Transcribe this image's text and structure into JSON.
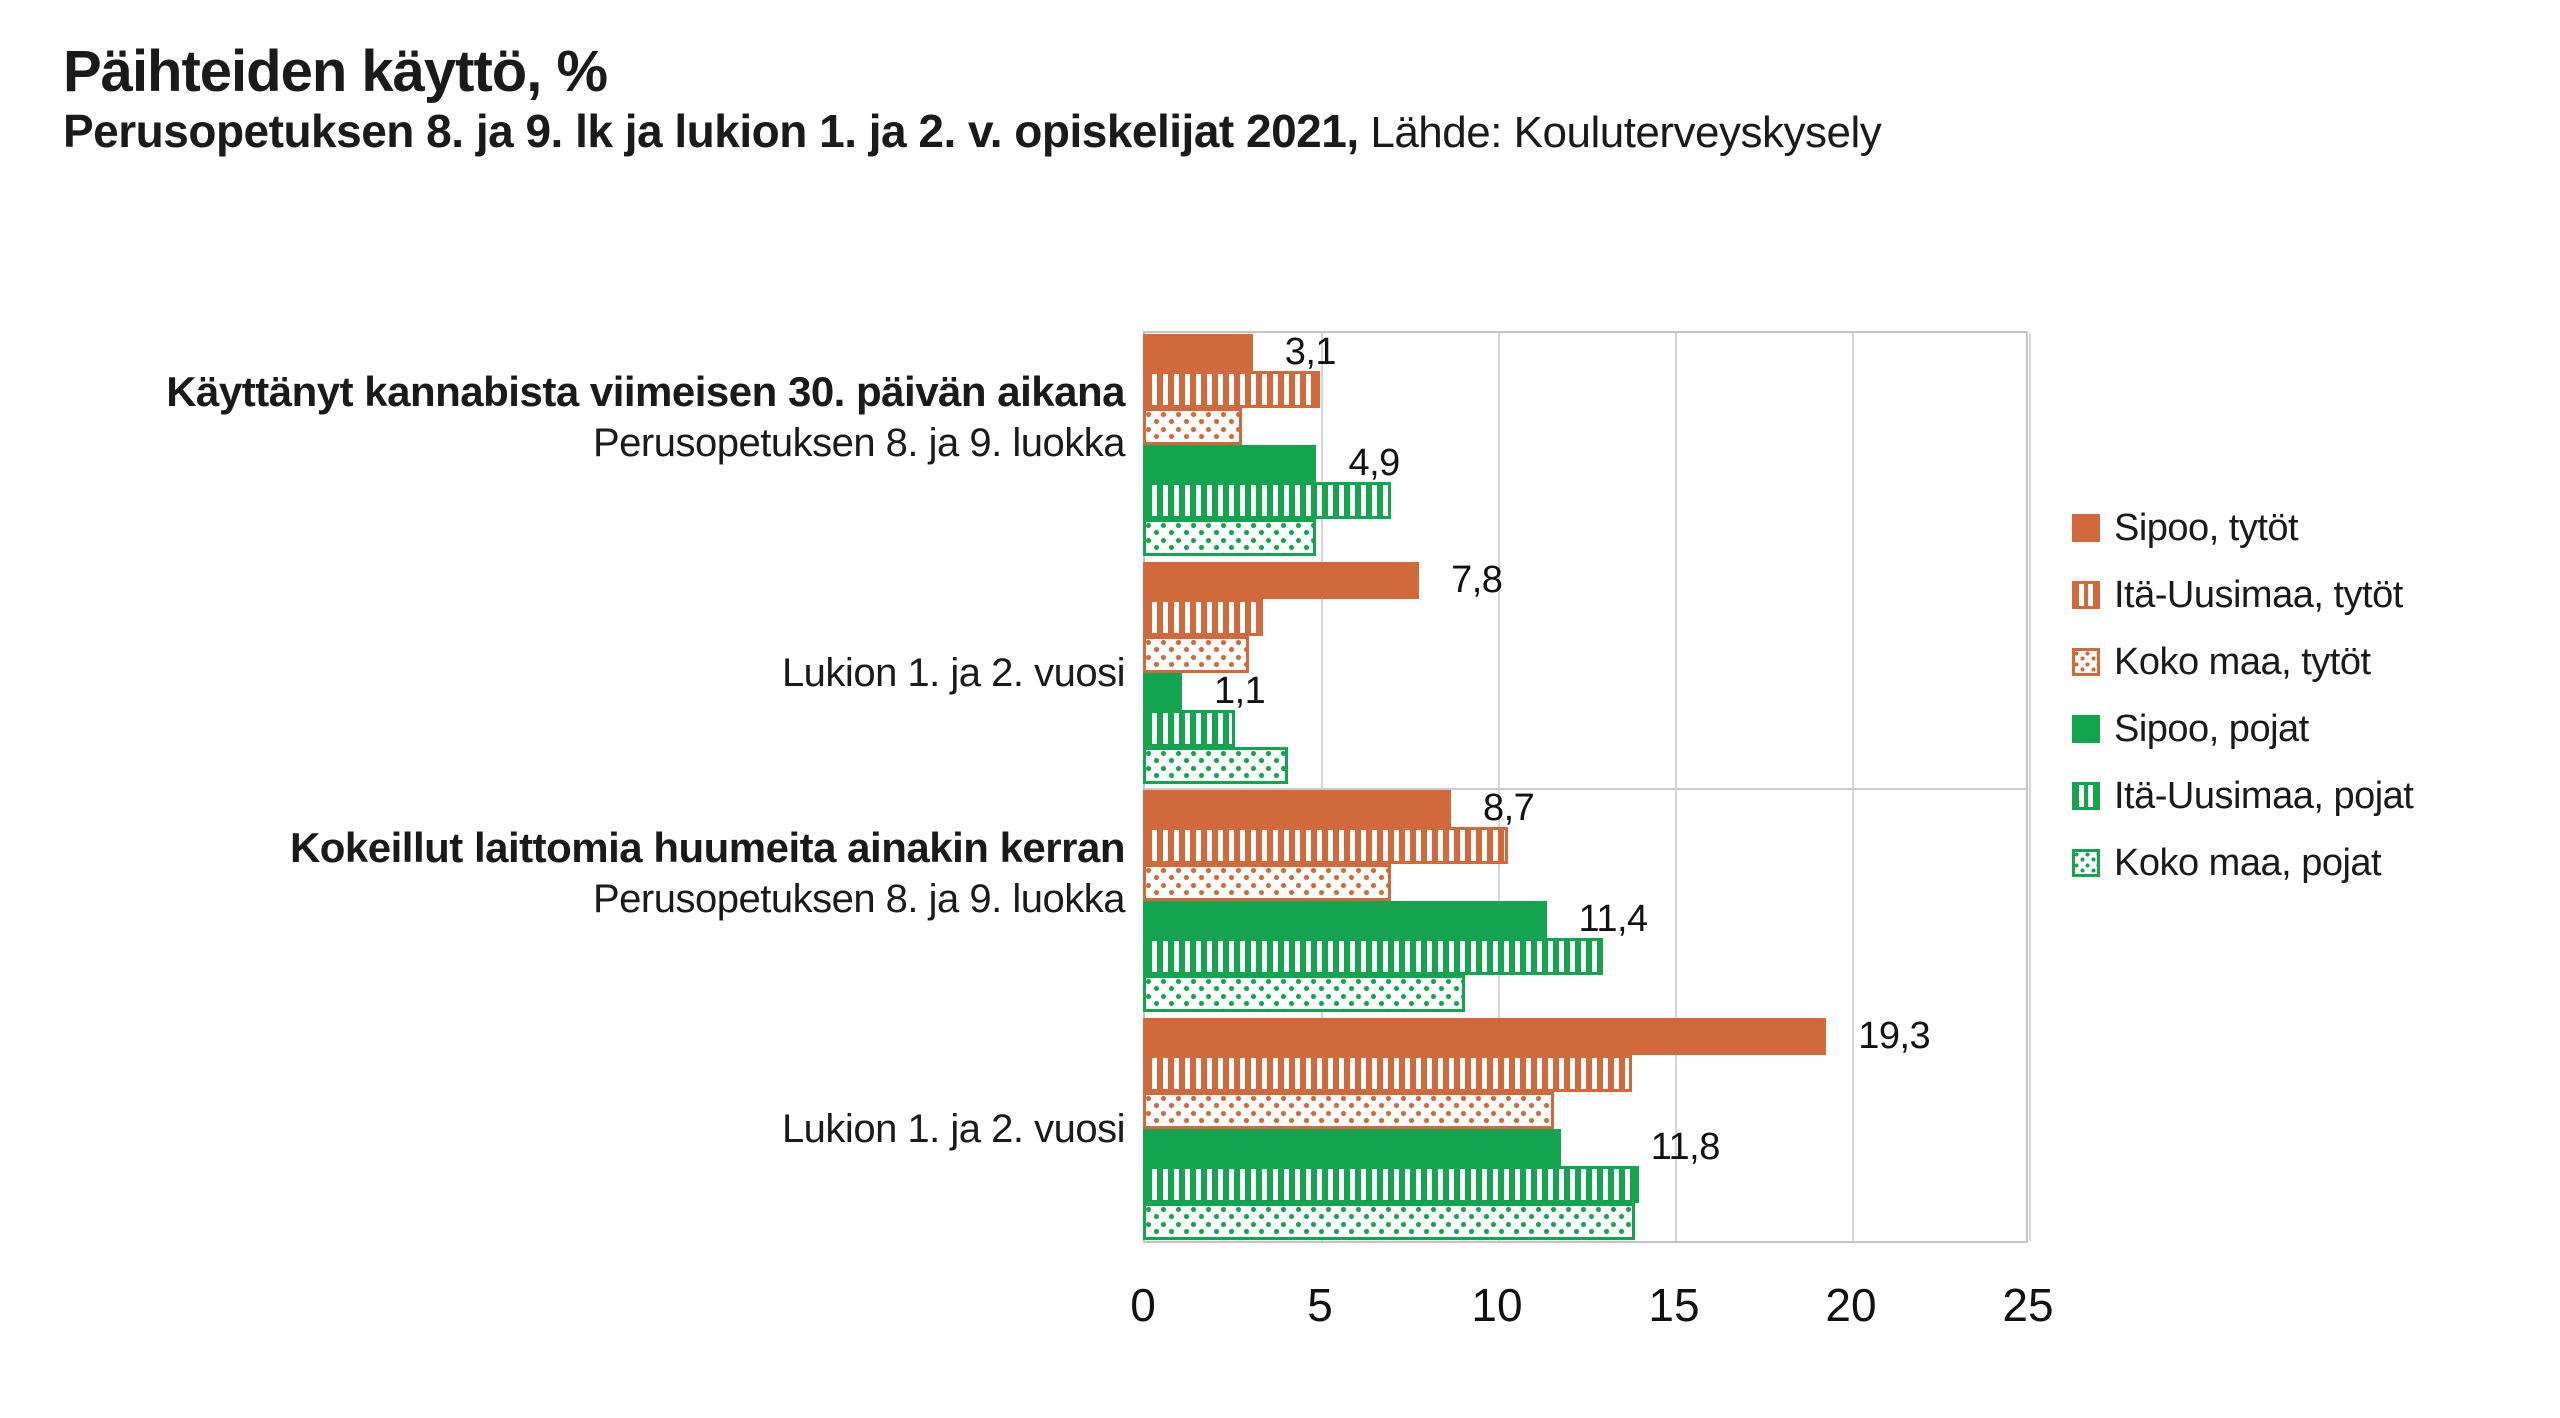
{
  "header": {
    "title": "Päihteiden käyttö, %",
    "subtitle_bold": "Perusopetuksen 8. ja 9. lk ja lukion 1. ja 2. v. opiskelijat 2021,",
    "subtitle_source": " Lähde: Kouluterveyskysely"
  },
  "chart_data": {
    "type": "bar",
    "orientation": "horizontal",
    "title": "Päihteiden käyttö, %",
    "xlabel": "",
    "ylabel": "",
    "xlim": [
      0,
      25
    ],
    "x_ticks": [
      "0",
      "5",
      "10",
      "15",
      "20",
      "25"
    ],
    "grid": "vertical",
    "legend_position": "right",
    "colors": {
      "girls_orange": "#d2693c",
      "boys_green": "#14a44f",
      "gridline_gray": "#d6d6d6",
      "border_gray": "#c3c3c3"
    },
    "series": [
      {
        "name": "Sipoo, tytöt",
        "color": "#d2693c",
        "pattern": "solid"
      },
      {
        "name": "Itä-Uusimaa, tytöt",
        "color": "#d2693c",
        "pattern": "vertical-stripes"
      },
      {
        "name": "Koko maa, tytöt",
        "color": "#d2693c",
        "pattern": "dots"
      },
      {
        "name": "Sipoo, pojat",
        "color": "#14a44f",
        "pattern": "solid"
      },
      {
        "name": "Itä-Uusimaa, pojat",
        "color": "#14a44f",
        "pattern": "vertical-stripes"
      },
      {
        "name": "Koko maa, pojat",
        "color": "#14a44f",
        "pattern": "dots"
      }
    ],
    "groups": [
      {
        "category_bold": "Käyttänyt kannabista viimeisen 30. päivän aikana",
        "category_sub": "Perusopetuksen 8. ja 9. luokka",
        "values": [
          3.1,
          5.0,
          2.8,
          4.9,
          7.0,
          4.9
        ],
        "shown_labels": [
          {
            "series_index": 0,
            "text": "3,1",
            "dx": 32
          },
          {
            "series_index": 3,
            "text": "4,9",
            "dx": 32
          }
        ]
      },
      {
        "category_bold": "",
        "category_sub": "Lukion 1. ja 2. vuosi",
        "values": [
          7.8,
          3.4,
          3.0,
          1.1,
          2.6,
          4.1
        ],
        "shown_labels": [
          {
            "series_index": 0,
            "text": "7,8",
            "dx": 32
          },
          {
            "series_index": 3,
            "text": "1,1",
            "dx": 32
          }
        ]
      },
      {
        "category_bold": "Kokeillut laittomia huumeita ainakin kerran",
        "category_sub": "Perusopetuksen 8. ja 9. luokka",
        "values": [
          8.7,
          10.3,
          7.0,
          11.4,
          13.0,
          9.1
        ],
        "shown_labels": [
          {
            "series_index": 0,
            "text": "8,7",
            "dx": 32
          },
          {
            "series_index": 3,
            "text": "11,4",
            "dx": 32
          }
        ]
      },
      {
        "category_bold": "",
        "category_sub": "Lukion 1. ja 2. vuosi",
        "values": [
          19.3,
          13.8,
          11.6,
          11.8,
          14.0,
          13.9
        ],
        "shown_labels": [
          {
            "series_index": 0,
            "text": "19,3",
            "dx": 32
          },
          {
            "series_index": 3,
            "text": "11,8",
            "dx": 90
          }
        ]
      }
    ]
  }
}
